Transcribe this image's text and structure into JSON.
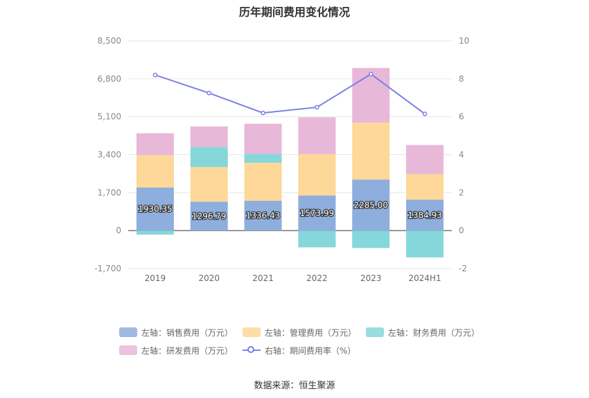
{
  "chart_data": {
    "type": "bar",
    "title": "历年期间费用变化情况",
    "categories": [
      "2019",
      "2020",
      "2021",
      "2022",
      "2023",
      "2024H1"
    ],
    "left_axis": {
      "min": -1700,
      "max": 8500,
      "ticks": [
        "-1,700",
        "0",
        "1,700",
        "3,400",
        "5,100",
        "6,800",
        "8,500"
      ],
      "tick_values": [
        -1700,
        0,
        1700,
        3400,
        5100,
        6800,
        8500
      ]
    },
    "right_axis": {
      "min": -2,
      "max": 10,
      "ticks": [
        "-2",
        "0",
        "2",
        "4",
        "6",
        "8",
        "10"
      ],
      "tick_values": [
        -2,
        0,
        2,
        4,
        6,
        8,
        10
      ]
    },
    "series": [
      {
        "name": "左轴：销售费用（万元）",
        "kind": "bar",
        "color": "#8eaedd",
        "values": [
          1930.35,
          1296.79,
          1336.43,
          1573.99,
          2285.0,
          1384.93
        ],
        "labels": [
          "1930.35",
          "1296.79",
          "1336.43",
          "1573.99",
          "2285.00",
          "1384.93"
        ]
      },
      {
        "name": "左轴：管理费用（万元）",
        "kind": "bar",
        "color": "#fdd898",
        "values": [
          1450,
          1550,
          1700,
          1850,
          2550,
          1150
        ]
      },
      {
        "name": "左轴：财务费用（万元）",
        "kind": "bar",
        "color": "#86d7da",
        "values": [
          -180,
          900,
          400,
          -750,
          -780,
          -1200
        ]
      },
      {
        "name": "左轴：研发费用（万元）",
        "kind": "bar",
        "color": "#e8b8d8",
        "values": [
          980,
          920,
          1350,
          1650,
          2450,
          1300
        ]
      },
      {
        "name": "右轴：期间费用率（%）",
        "kind": "line",
        "color": "#7b7fe8",
        "values": [
          8.2,
          7.25,
          6.2,
          6.5,
          8.25,
          6.15
        ]
      }
    ],
    "grid": true,
    "legend_position": "bottom"
  },
  "source": "数据来源：恒生聚源"
}
